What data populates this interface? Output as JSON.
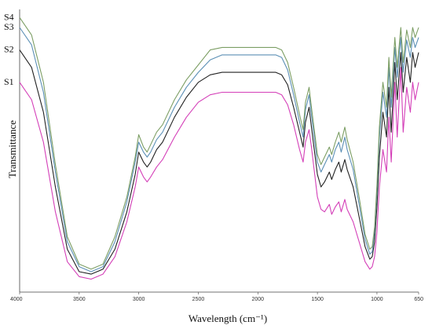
{
  "chart_data": {
    "type": "line",
    "title": "",
    "xlabel": "Wavelength (cm⁻¹)",
    "ylabel": "Transmittance",
    "x_ticks": [
      4000,
      3500,
      3000,
      2500,
      2000,
      1500,
      1000,
      650
    ],
    "x_tick_labels": [
      "4000",
      "3500",
      "3000",
      "2500",
      "2000",
      "1500",
      "1000",
      "650"
    ],
    "xlim": [
      4000,
      650
    ],
    "x_reversed": true,
    "ylim": [
      0,
      100
    ],
    "y_ticks_shown": false,
    "grid": false,
    "x": [
      4000,
      3900,
      3800,
      3700,
      3600,
      3500,
      3400,
      3300,
      3200,
      3100,
      3030,
      3000,
      2960,
      2930,
      2900,
      2850,
      2800,
      2700,
      2600,
      2500,
      2400,
      2300,
      2200,
      2100,
      2000,
      1900,
      1850,
      1800,
      1750,
      1700,
      1650,
      1620,
      1600,
      1570,
      1550,
      1500,
      1470,
      1440,
      1400,
      1380,
      1350,
      1320,
      1300,
      1270,
      1250,
      1200,
      1150,
      1100,
      1060,
      1040,
      1020,
      1000,
      980,
      950,
      920,
      900,
      880,
      850,
      830,
      800,
      780,
      750,
      720,
      700,
      680,
      650
    ],
    "series": [
      {
        "name": "S1",
        "color": "#d43fb8",
        "values": [
          82,
          75,
          58,
          30,
          10,
          4,
          3,
          5,
          12,
          26,
          40,
          48,
          44,
          42,
          44,
          48,
          51,
          60,
          68,
          74,
          77,
          78,
          78,
          78,
          78,
          78,
          78,
          77,
          73,
          65,
          55,
          50,
          58,
          63,
          56,
          36,
          31,
          30,
          33,
          29,
          32,
          34,
          30,
          35,
          31,
          26,
          18,
          10,
          7,
          8,
          12,
          22,
          40,
          55,
          46,
          68,
          50,
          82,
          60,
          88,
          62,
          80,
          70,
          82,
          75,
          82
        ]
      },
      {
        "name": "S2",
        "color": "#222222",
        "values": [
          95,
          88,
          70,
          40,
          15,
          6,
          5,
          7,
          15,
          30,
          45,
          54,
          50,
          48,
          50,
          55,
          58,
          68,
          76,
          82,
          85,
          86,
          86,
          86,
          86,
          86,
          86,
          85,
          81,
          72,
          62,
          56,
          66,
          72,
          64,
          45,
          40,
          42,
          46,
          43,
          47,
          50,
          46,
          51,
          47,
          40,
          28,
          16,
          11,
          12,
          18,
          32,
          52,
          70,
          60,
          80,
          62,
          90,
          75,
          94,
          78,
          92,
          82,
          94,
          88,
          94
        ]
      },
      {
        "name": "S3",
        "color": "#5b8fb5",
        "values": [
          104,
          97,
          78,
          46,
          18,
          8,
          6,
          8,
          18,
          34,
          50,
          58,
          54,
          52,
          54,
          59,
          62,
          72,
          80,
          86,
          91,
          93,
          93,
          93,
          93,
          93,
          93,
          92,
          87,
          77,
          66,
          60,
          71,
          77,
          69,
          50,
          46,
          49,
          53,
          50,
          55,
          58,
          54,
          60,
          55,
          47,
          33,
          19,
          13,
          14,
          22,
          38,
          60,
          78,
          68,
          88,
          72,
          96,
          84,
          100,
          86,
          99,
          92,
          100,
          96,
          100
        ]
      },
      {
        "name": "S4",
        "color": "#7c9e64",
        "values": [
          108,
          101,
          82,
          49,
          20,
          9,
          7,
          9,
          20,
          36,
          52,
          61,
          56,
          54,
          57,
          62,
          65,
          75,
          83,
          89,
          95,
          96,
          96,
          96,
          96,
          96,
          96,
          95,
          90,
          80,
          69,
          63,
          74,
          80,
          72,
          53,
          49,
          52,
          56,
          53,
          58,
          62,
          58,
          64,
          59,
          50,
          36,
          21,
          15,
          16,
          24,
          41,
          64,
          82,
          72,
          92,
          76,
          100,
          88,
          104,
          90,
          103,
          96,
          104,
          100,
          104
        ]
      }
    ]
  }
}
